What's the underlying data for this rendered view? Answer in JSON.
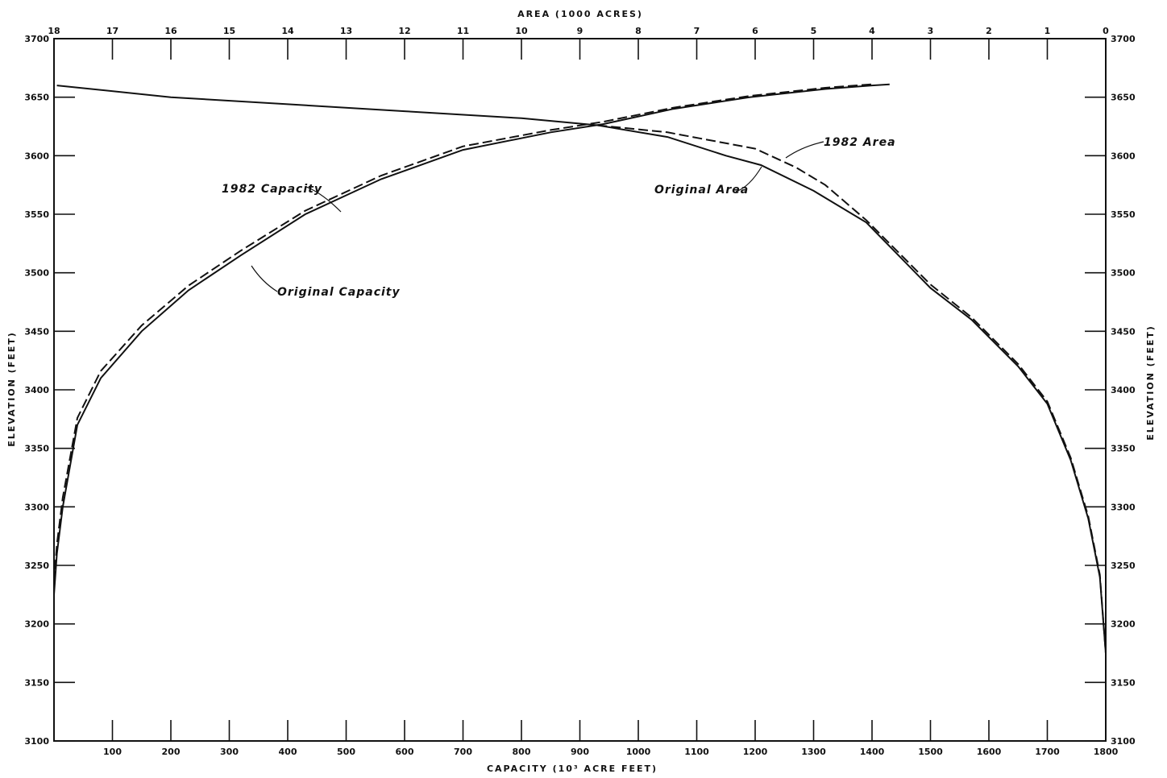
{
  "chart_data": {
    "type": "line",
    "title": "",
    "top_axis": {
      "label": "AREA (1000 ACRES)",
      "range": [
        18,
        0
      ],
      "ticks": [
        "18",
        "17",
        "16",
        "15",
        "14",
        "13",
        "12",
        "11",
        "10",
        "9",
        "8",
        "7",
        "6",
        "5",
        "4",
        "3",
        "2",
        "1",
        "0"
      ]
    },
    "bottom_axis": {
      "label": "CAPACITY (10³ ACRE FEET)",
      "range": [
        0,
        1800
      ],
      "ticks": [
        "100",
        "200",
        "300",
        "400",
        "500",
        "600",
        "700",
        "800",
        "900",
        "1000",
        "1100",
        "1200",
        "1300",
        "1400",
        "1500",
        "1600",
        "1700",
        "1800"
      ]
    },
    "left_axis": {
      "label": "ELEVATION (FEET)",
      "range": [
        3100,
        3700
      ],
      "ticks": [
        "3100",
        "3150",
        "3200",
        "3250",
        "3300",
        "3350",
        "3400",
        "3450",
        "3500",
        "3550",
        "3600",
        "3650",
        "3700"
      ]
    },
    "right_axis": {
      "label": "ELEVATION (FEET)",
      "range": [
        3100,
        3700
      ],
      "ticks": [
        "3100",
        "3150",
        "3200",
        "3250",
        "3300",
        "3350",
        "3400",
        "3450",
        "3500",
        "3550",
        "3600",
        "3650",
        "3700"
      ]
    },
    "grid": false,
    "series": [
      {
        "name": "Original Capacity",
        "axis": "capacity",
        "style": "solid",
        "x": [
          0,
          5,
          15,
          40,
          80,
          150,
          230,
          320,
          430,
          560,
          700,
          850,
          940,
          1060,
          1190,
          1320,
          1400,
          1430
        ],
        "y": [
          3225,
          3260,
          3300,
          3370,
          3410,
          3450,
          3485,
          3515,
          3550,
          3580,
          3605,
          3620,
          3627,
          3640,
          3650,
          3657,
          3660,
          3661
        ]
      },
      {
        "name": "1982 Capacity",
        "axis": "capacity",
        "style": "dashed",
        "x": [
          0,
          5,
          15,
          40,
          80,
          150,
          230,
          320,
          430,
          560,
          700,
          850,
          940,
          1060,
          1190,
          1320,
          1400
        ],
        "y": [
          3235,
          3268,
          3308,
          3376,
          3416,
          3455,
          3489,
          3519,
          3553,
          3583,
          3608,
          3622,
          3629,
          3641,
          3651,
          3658,
          3661
        ]
      },
      {
        "name": "Original Area",
        "axis": "area",
        "style": "solid",
        "x": [
          17.95,
          16.0,
          14.0,
          12.0,
          10.0,
          8.7,
          7.5,
          6.5,
          5.9,
          5.0,
          4.1,
          3.0,
          2.3,
          1.5,
          1.0,
          0.6,
          0.3,
          0.1,
          0.0
        ],
        "y": [
          3660,
          3650,
          3644,
          3638,
          3632,
          3626,
          3616,
          3600,
          3592,
          3570,
          3543,
          3487,
          3460,
          3420,
          3388,
          3340,
          3290,
          3240,
          3175
        ]
      },
      {
        "name": "1982 Area",
        "axis": "area",
        "style": "dashed",
        "x": [
          8.7,
          7.5,
          6.0,
          5.3,
          4.8,
          4.1,
          3.0,
          2.3,
          1.5,
          1.0,
          0.6,
          0.3,
          0.1,
          0.0
        ],
        "y": [
          3626,
          3620,
          3606,
          3590,
          3575,
          3545,
          3490,
          3462,
          3422,
          3390,
          3342,
          3292,
          3242,
          3175
        ]
      }
    ],
    "annotations": [
      {
        "text": "1982 Area",
        "series": "1982 Area"
      },
      {
        "text": "Original Area",
        "series": "Original Area"
      },
      {
        "text": "1982 Capacity",
        "series": "1982 Capacity"
      },
      {
        "text": "Original Capacity",
        "series": "Original Capacity"
      }
    ]
  }
}
